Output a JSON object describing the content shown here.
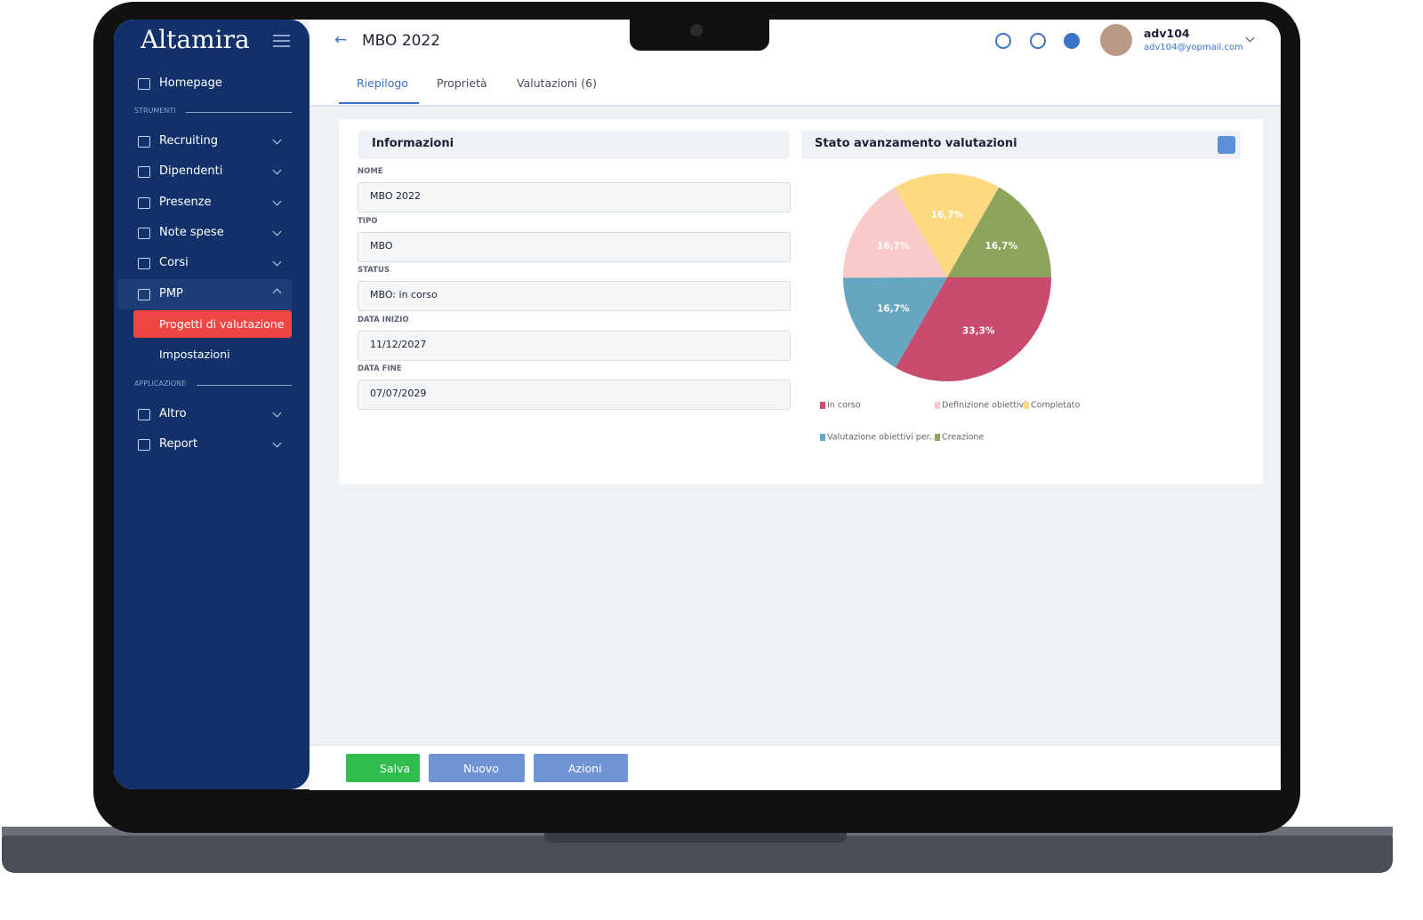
{
  "sidebar": {
    "logo": "Altamira",
    "homepage": "Homepage",
    "sections": [
      {
        "title": "STRUMENTI",
        "items": [
          {
            "label": "Recruiting"
          },
          {
            "label": "Dipendenti"
          },
          {
            "label": "Presenze"
          },
          {
            "label": "Note spese"
          },
          {
            "label": "Corsi"
          },
          {
            "label": "PMP",
            "children": [
              "Progetti di valutazione",
              "Impostazioni"
            ]
          }
        ]
      },
      {
        "title": "APPLICAZIONE",
        "items": [
          {
            "label": "Altro"
          },
          {
            "label": "Report"
          }
        ]
      }
    ]
  },
  "header": {
    "title": "MBO 2022",
    "user": "adv104",
    "email": "adv104@yopmail.com"
  },
  "tabs": [
    "Riepilogo",
    "Proprietà",
    "Valutazioni (6)"
  ],
  "info": {
    "title": "Informazioni",
    "fields": [
      {
        "label": "NOME",
        "value": "MBO 2022"
      },
      {
        "label": "TIPO",
        "value": "MBO"
      },
      {
        "label": "STATUS",
        "value": "MBO: in corso"
      },
      {
        "label": "DATA INIZIO",
        "value": "11/12/2027"
      },
      {
        "label": "DATA FINE",
        "value": "07/07/2029"
      }
    ]
  },
  "chart": {
    "type": "pie",
    "title": "Stato avanzamento valutazioni",
    "categories": [
      "In corso",
      "Valutazione obiettivi per...",
      "Definizione obiettivi",
      "Completato",
      "Creazione"
    ],
    "values": [
      33.3,
      16.7,
      16.7,
      16.7,
      16.7
    ],
    "value_labels": [
      "33,3%",
      "16,7%",
      "16,7%",
      "16,7%",
      "16,7%"
    ],
    "colors": [
      "#c94b6d",
      "#65a6c0",
      "#f9cac7",
      "#fdd97f",
      "#8ca45c"
    ]
  },
  "actions": [
    "Salva",
    "Nuovo",
    "Azioni"
  ]
}
